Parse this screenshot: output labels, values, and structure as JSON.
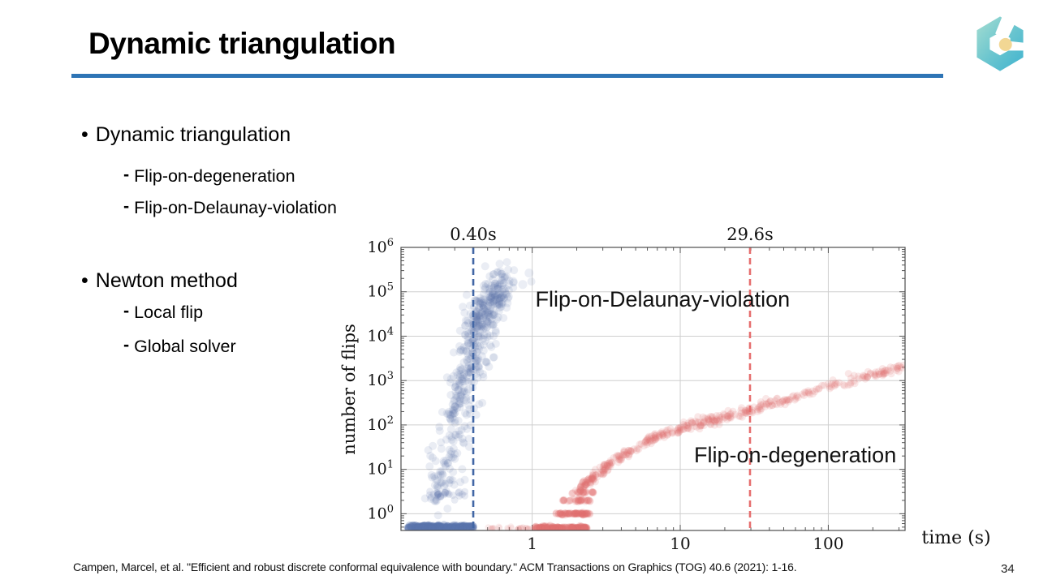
{
  "slide": {
    "title": "Dynamic triangulation",
    "accent_color": "#2e74b5",
    "bullet_marker": "•",
    "dash_marker": "-",
    "citation": "Campen, Marcel, et al. \"Efficient and robust discrete conformal equivalence with boundary.\" ACM Transactions on Graphics (TOG) 40.6 (2021): 1-16.",
    "page_number": "34"
  },
  "bullets": [
    {
      "label": "Dynamic triangulation",
      "sub": [
        "Flip-on-degeneration",
        "Flip-on-Delaunay-violation"
      ]
    },
    {
      "label": "Newton method",
      "sub": [
        "Local flip",
        "Global solver"
      ]
    }
  ],
  "logo": {
    "name": "hexagon-cube-logo",
    "teal_light": "#9edbd2",
    "teal_dark": "#3fb3cf",
    "dot_color": "#f2d794"
  },
  "chart_data": {
    "type": "scatter",
    "title": "",
    "xlabel": "time (s)",
    "ylabel": "number of flips",
    "x_scale": "log",
    "y_scale": "log",
    "xlim": [
      0.13,
      330
    ],
    "ylim": [
      0.42,
      1000000
    ],
    "grid": true,
    "legend_position": "inline-annotations",
    "seed": 42,
    "x_ticks": [
      {
        "value": 1,
        "label": "1"
      },
      {
        "value": 10,
        "label": "10"
      },
      {
        "value": 100,
        "label": "100"
      }
    ],
    "y_tick_exponents": [
      0,
      1,
      2,
      3,
      4,
      5,
      6
    ],
    "vlines": [
      {
        "x": 0.4,
        "label": "0.40s",
        "color": "#4166a5"
      },
      {
        "x": 29.6,
        "label": "29.6s",
        "color": "#e66d6d"
      }
    ],
    "annotations": [
      {
        "text": "Flip-on-Delaunay-violation",
        "x": 1.05,
        "y": 46000,
        "anchor": "start",
        "size": 27
      },
      {
        "text": "Flip-on-degeneration",
        "x": 12.4,
        "y": 14.4,
        "anchor": "start",
        "size": 27
      }
    ],
    "series": [
      {
        "name": "Flip-on-Delaunay-violation",
        "color": "#5b74ad",
        "clusters": [
          {
            "n": 520,
            "anchors": [
              [
                0.21,
                0.9
              ],
              [
                0.23,
                3
              ],
              [
                0.27,
                12
              ],
              [
                0.3,
                70
              ],
              [
                0.34,
                500
              ],
              [
                0.38,
                2500
              ],
              [
                0.42,
                9000
              ],
              [
                0.46,
                30000
              ],
              [
                0.53,
                70000
              ],
              [
                0.62,
                140000
              ]
            ],
            "sigma_x": 0.055,
            "sigma_y": 0.22,
            "radius": 5,
            "opacity": 0.13,
            "dist": "topheavy"
          },
          {
            "n": 7,
            "anchors": [
              [
                0.58,
                100000
              ],
              [
                0.78,
                200000
              ]
            ],
            "sigma_x": 0.06,
            "sigma_y": 0.12,
            "radius": 5.5,
            "opacity": 0.12,
            "dist": "uniform"
          },
          {
            "n": 230,
            "anchors": [
              [
                0.145,
                0.5
              ],
              [
                0.4,
                0.5
              ]
            ],
            "sigma_x": 0,
            "sigma_y": 0.02,
            "radius": 5,
            "opacity": 0.3,
            "dist": "uniform"
          },
          {
            "n": 26,
            "anchors": [
              [
                0.2,
                2.7
              ],
              [
                0.36,
                2.7
              ]
            ],
            "sigma_x": 0,
            "sigma_y": 0.06,
            "radius": 4.5,
            "opacity": 0.14,
            "dist": "uniform"
          }
        ]
      },
      {
        "name": "Flip-on-degeneration",
        "color": "#e17070",
        "clusters": [
          {
            "n": 26,
            "anchors": [
              [
                0.5,
                0.47
              ],
              [
                1.05,
                0.47
              ]
            ],
            "sigma_x": 0,
            "sigma_y": 0.015,
            "radius": 4,
            "opacity": 0.12,
            "dist": "uniform"
          },
          {
            "n": 150,
            "anchors": [
              [
                1.05,
                0.47
              ],
              [
                2.35,
                0.47
              ]
            ],
            "sigma_x": 0,
            "sigma_y": 0.02,
            "radius": 5,
            "opacity": 0.25,
            "dist": "uniform"
          },
          {
            "n": 70,
            "anchors": [
              [
                1.45,
                1
              ],
              [
                2.45,
                1
              ]
            ],
            "sigma_x": 0,
            "sigma_y": 0.012,
            "radius": 4.5,
            "opacity": 0.2,
            "dist": "uniform"
          },
          {
            "n": 38,
            "anchors": [
              [
                1.6,
                2
              ],
              [
                2.5,
                2
              ]
            ],
            "sigma_x": 0,
            "sigma_y": 0.012,
            "radius": 4.5,
            "opacity": 0.17,
            "dist": "uniform"
          },
          {
            "n": 24,
            "anchors": [
              [
                1.8,
                3
              ],
              [
                2.62,
                3
              ]
            ],
            "sigma_x": 0,
            "sigma_y": 0.012,
            "radius": 4.5,
            "opacity": 0.15,
            "dist": "uniform"
          },
          {
            "n": 430,
            "anchors": [
              [
                2.05,
                3.2
              ],
              [
                2.5,
                6
              ],
              [
                3.2,
                12
              ],
              [
                4.5,
                25
              ],
              [
                7,
                55
              ],
              [
                11,
                90
              ],
              [
                18,
                140
              ],
              [
                29.6,
                210
              ],
              [
                55,
                400
              ],
              [
                110,
                800
              ],
              [
                200,
                1350
              ],
              [
                310,
                2000
              ]
            ],
            "sigma_x": 0.012,
            "sigma_y": 0.05,
            "radius": 4.5,
            "opacity": 0.16,
            "dist": "uniform"
          }
        ]
      }
    ]
  }
}
